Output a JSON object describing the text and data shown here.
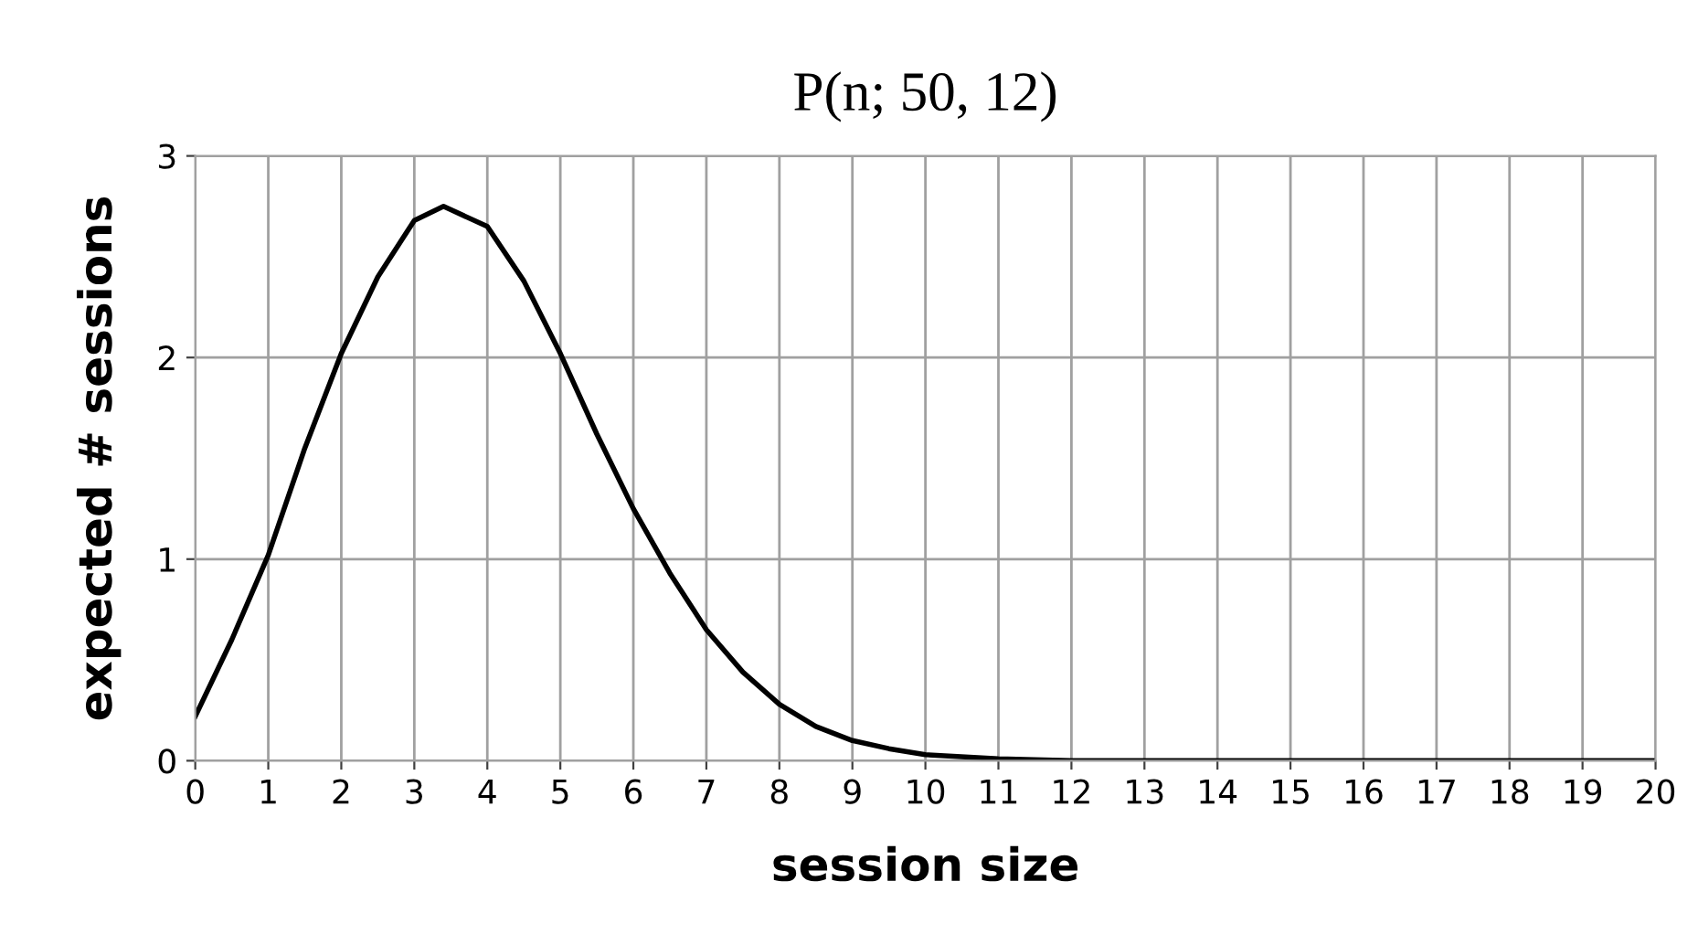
{
  "chart_data": {
    "type": "line",
    "title": "P(n; 50, 12)",
    "xlabel": "session size",
    "ylabel": "expected # sessions",
    "series": [
      {
        "color": "#000000",
        "x": [
          0,
          0.5,
          1,
          1.5,
          2,
          2.5,
          3,
          3.4,
          4,
          4.5,
          5,
          5.5,
          6,
          6.5,
          7,
          7.5,
          8,
          8.5,
          9,
          9.5,
          10,
          11,
          12,
          13,
          14,
          15,
          16,
          17,
          18,
          19,
          20
        ],
        "values": [
          0.22,
          0.6,
          1.02,
          1.55,
          2.02,
          2.4,
          2.68,
          2.75,
          2.65,
          2.38,
          2.02,
          1.62,
          1.25,
          0.93,
          0.65,
          0.44,
          0.28,
          0.17,
          0.1,
          0.06,
          0.03,
          0.01,
          0,
          0,
          0,
          0,
          0,
          0,
          0,
          0,
          0
        ]
      }
    ],
    "xlim": [
      0,
      20
    ],
    "ylim": [
      0,
      3
    ],
    "xticks": [
      0,
      1,
      2,
      3,
      4,
      5,
      6,
      7,
      8,
      9,
      10,
      11,
      12,
      13,
      14,
      15,
      16,
      17,
      18,
      19,
      20
    ],
    "yticks": [
      0,
      1,
      2,
      3
    ],
    "grid": true,
    "marker": "none",
    "line_style": "solid",
    "legend": false
  }
}
